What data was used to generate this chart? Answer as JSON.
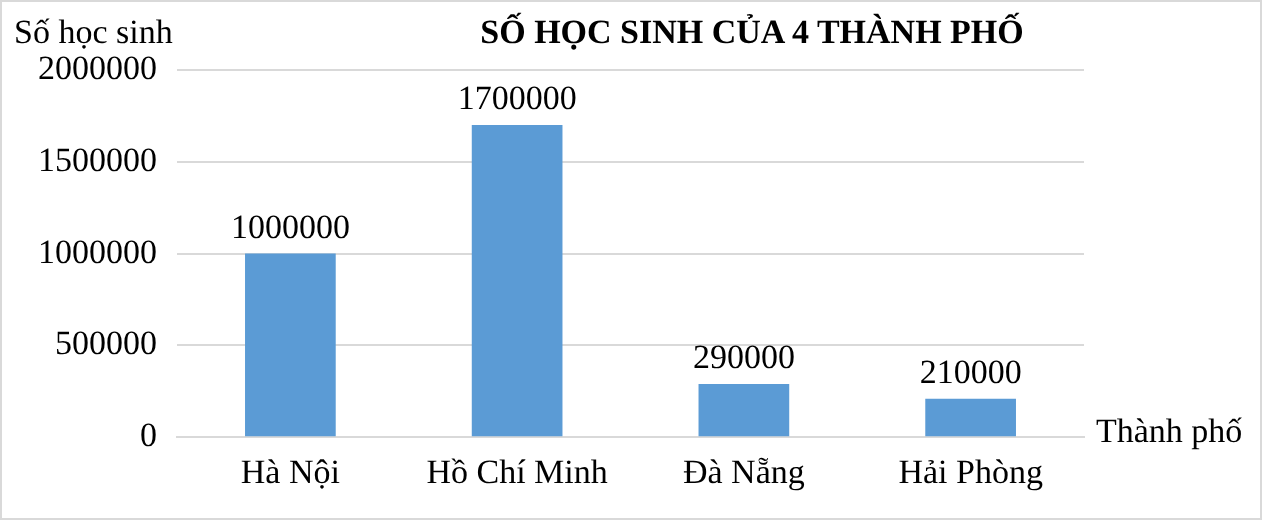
{
  "chart_data": {
    "type": "bar",
    "title": "SỐ HỌC SINH CỦA 4 THÀNH PHỐ",
    "ylabel": "Số học sinh",
    "xlabel": "Thành phố",
    "categories": [
      "Hà Nội",
      "Hồ Chí Minh",
      "Đà Nẵng",
      "Hải Phòng"
    ],
    "values": [
      1000000,
      1700000,
      290000,
      210000
    ],
    "color": "#5b9bd5",
    "ylim": [
      0,
      2000000
    ],
    "yticks": [
      0,
      500000,
      1000000,
      1500000,
      2000000
    ],
    "grid": "y",
    "data_labels": true,
    "legend": false
  }
}
